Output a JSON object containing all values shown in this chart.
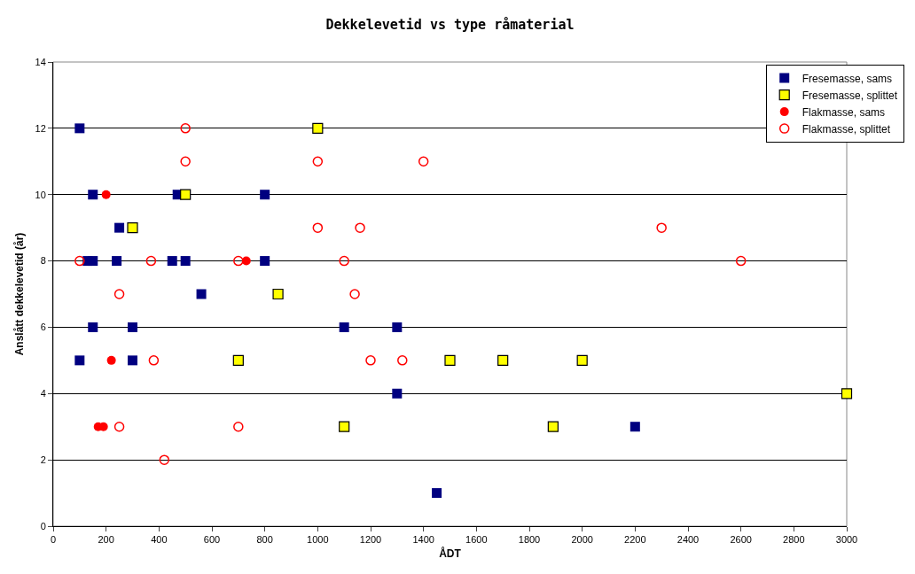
{
  "chart_data": {
    "type": "scatter",
    "title": "Dekkelevetid vs type råmaterial",
    "xlabel": "ÅDT",
    "ylabel": "Anslått dekkelevetid (år)",
    "xlim": [
      0,
      3000
    ],
    "xticks": [
      0,
      200,
      400,
      600,
      800,
      1000,
      1200,
      1400,
      1600,
      1800,
      2000,
      2200,
      2400,
      2600,
      2800,
      3000
    ],
    "ylim": [
      0,
      14
    ],
    "yticks": [
      0,
      2,
      4,
      6,
      8,
      10,
      12,
      14
    ],
    "grid": "y",
    "legend": "top right",
    "series": [
      {
        "name": "Fresemasse, sams",
        "color": "#000080",
        "marker": "square",
        "x": [
          100,
          150,
          470,
          800,
          250,
          130,
          150,
          240,
          450,
          500,
          800,
          560,
          150,
          300,
          1100,
          1300,
          100,
          300,
          1300,
          2200,
          1450
        ],
        "values": [
          12,
          10,
          10,
          10,
          9,
          8,
          8,
          8,
          8,
          8,
          8,
          7,
          6,
          6,
          6,
          6,
          5,
          5,
          4,
          3,
          1
        ]
      },
      {
        "name": "Fresemasse, splittet",
        "color": "#ffff00",
        "marker": "square",
        "x": [
          1000,
          500,
          300,
          850,
          700,
          1500,
          1700,
          2000,
          3000,
          1100,
          1890
        ],
        "values": [
          12,
          10,
          9,
          7,
          5,
          5,
          5,
          5,
          4,
          3,
          3
        ]
      },
      {
        "name": "Flakmasse, sams",
        "color": "#ff0000",
        "marker": "circle",
        "x": [
          200,
          730,
          220,
          170,
          190
        ],
        "values": [
          10,
          8,
          5,
          3,
          3
        ]
      },
      {
        "name": "Flakmasse, splittet",
        "color": "#ff0000",
        "marker": "circle",
        "x": [
          500,
          500,
          1000,
          1400,
          1000,
          1160,
          2300,
          100,
          370,
          700,
          1100,
          2600,
          250,
          1140,
          380,
          1200,
          1320,
          250,
          700,
          420
        ],
        "values": [
          12,
          11,
          11,
          11,
          9,
          9,
          9,
          8,
          8,
          8,
          8,
          8,
          7,
          7,
          5,
          5,
          5,
          3,
          3,
          2
        ]
      }
    ]
  }
}
